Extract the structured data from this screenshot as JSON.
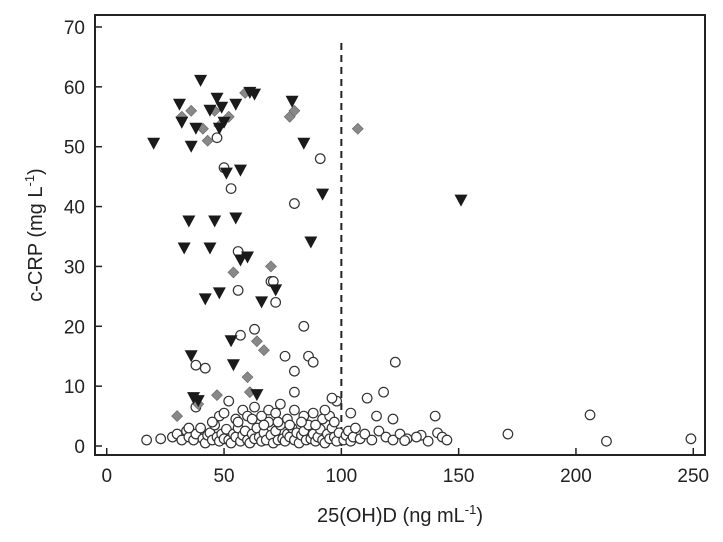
{
  "chart_data": {
    "type": "scatter",
    "xlabel": "25(OH)D (ng mL",
    "xlabel_sup": "-1",
    "xlabel_end": ")",
    "ylabel": "c-CRP (mg L",
    "ylabel_sup": "-1",
    "ylabel_end": ")",
    "xlim": [
      -5,
      255
    ],
    "ylim": [
      -1.5,
      72
    ],
    "xticks": [
      0,
      50,
      100,
      150,
      200,
      250
    ],
    "yticks": [
      0,
      10,
      20,
      30,
      40,
      50,
      60,
      70
    ],
    "reference_line": {
      "x": 100,
      "y_range": [
        0,
        68
      ],
      "style": "dashed"
    },
    "grid": false,
    "series": [
      {
        "marker": "triangle-down",
        "color": "#1a1a1a",
        "points": [
          [
            20,
            50.5
          ],
          [
            31,
            57
          ],
          [
            32,
            54
          ],
          [
            35,
            37.5
          ],
          [
            40,
            61
          ],
          [
            44,
            56
          ],
          [
            47,
            58
          ],
          [
            49,
            56.5
          ],
          [
            50,
            54
          ],
          [
            55,
            57
          ],
          [
            61,
            59
          ],
          [
            63,
            58.7
          ],
          [
            79,
            57.5
          ],
          [
            33,
            33
          ],
          [
            36,
            50
          ],
          [
            38,
            53
          ],
          [
            42,
            24.5
          ],
          [
            44,
            33
          ],
          [
            46,
            37.5
          ],
          [
            48,
            53
          ],
          [
            48,
            25.5
          ],
          [
            51,
            45.5
          ],
          [
            53,
            17.5
          ],
          [
            54,
            13.5
          ],
          [
            55,
            38
          ],
          [
            57,
            46
          ],
          [
            57,
            31
          ],
          [
            60,
            31.5
          ],
          [
            64,
            8.5
          ],
          [
            66,
            24
          ],
          [
            72,
            26
          ],
          [
            84,
            50.5
          ],
          [
            87,
            34
          ],
          [
            92,
            42
          ],
          [
            36,
            15
          ],
          [
            37,
            8
          ],
          [
            39,
            7.5
          ],
          [
            151,
            41
          ]
        ]
      },
      {
        "marker": "diamond",
        "color": "#888888",
        "points": [
          [
            30,
            5
          ],
          [
            32,
            55
          ],
          [
            36,
            56
          ],
          [
            41,
            53
          ],
          [
            43,
            51
          ],
          [
            46,
            56
          ],
          [
            48,
            53.5
          ],
          [
            52,
            55
          ],
          [
            59,
            59
          ],
          [
            78,
            55
          ],
          [
            80,
            56
          ],
          [
            107,
            53
          ],
          [
            39,
            7
          ],
          [
            47,
            8.5
          ],
          [
            54,
            29
          ],
          [
            64,
            17.5
          ],
          [
            67,
            16
          ],
          [
            70,
            30
          ],
          [
            60,
            11.5
          ],
          [
            61,
            9
          ]
        ]
      },
      {
        "marker": "circle",
        "color": "#ffffff",
        "stroke": "#333333",
        "points": [
          [
            17,
            1
          ],
          [
            23,
            1.2
          ],
          [
            28,
            1.5
          ],
          [
            30,
            2
          ],
          [
            32,
            1
          ],
          [
            34,
            2.5
          ],
          [
            35,
            1.5
          ],
          [
            37,
            1
          ],
          [
            38,
            2
          ],
          [
            40,
            3
          ],
          [
            41,
            1.2
          ],
          [
            42,
            0.5
          ],
          [
            43,
            1.8
          ],
          [
            44,
            2.2
          ],
          [
            45,
            1
          ],
          [
            46,
            3.5
          ],
          [
            47,
            1.5
          ],
          [
            48,
            0.8
          ],
          [
            49,
            2
          ],
          [
            50,
            1.2
          ],
          [
            51,
            2.8
          ],
          [
            52,
            1
          ],
          [
            53,
            0.5
          ],
          [
            54,
            2
          ],
          [
            55,
            1.5
          ],
          [
            56,
            3
          ],
          [
            57,
            0.8
          ],
          [
            58,
            1.8
          ],
          [
            59,
            2.5
          ],
          [
            60,
            1
          ],
          [
            61,
            0.5
          ],
          [
            62,
            2
          ],
          [
            63,
            1.2
          ],
          [
            64,
            3
          ],
          [
            65,
            1.5
          ],
          [
            66,
            0.8
          ],
          [
            67,
            2.2
          ],
          [
            68,
            1
          ],
          [
            69,
            4
          ],
          [
            70,
            1.8
          ],
          [
            71,
            0.5
          ],
          [
            72,
            2.5
          ],
          [
            73,
            1
          ],
          [
            74,
            3.5
          ],
          [
            75,
            1.2
          ],
          [
            76,
            0.8
          ],
          [
            77,
            2
          ],
          [
            78,
            1.5
          ],
          [
            79,
            3
          ],
          [
            80,
            1
          ],
          [
            81,
            2.2
          ],
          [
            82,
            0.5
          ],
          [
            83,
            1.8
          ],
          [
            84,
            2.5
          ],
          [
            85,
            1
          ],
          [
            86,
            3.5
          ],
          [
            87,
            1.2
          ],
          [
            88,
            2
          ],
          [
            89,
            0.8
          ],
          [
            90,
            1.5
          ],
          [
            91,
            2.8
          ],
          [
            92,
            1
          ],
          [
            93,
            0.5
          ],
          [
            94,
            2
          ],
          [
            95,
            1.2
          ],
          [
            96,
            3
          ],
          [
            97,
            1.5
          ],
          [
            98,
            0.8
          ],
          [
            99,
            2.2
          ],
          [
            101,
            1
          ],
          [
            102,
            1.8
          ],
          [
            103,
            2.5
          ],
          [
            104,
            0.8
          ],
          [
            105,
            1.5
          ],
          [
            106,
            3
          ],
          [
            108,
            1.2
          ],
          [
            110,
            2
          ],
          [
            113,
            1
          ],
          [
            116,
            2.5
          ],
          [
            119,
            1.5
          ],
          [
            122,
            1
          ],
          [
            125,
            2
          ],
          [
            128,
            1.2
          ],
          [
            134,
            1.8
          ],
          [
            137,
            0.8
          ],
          [
            141,
            2.2
          ],
          [
            143,
            1.5
          ],
          [
            48,
            5
          ],
          [
            52,
            7.5
          ],
          [
            55,
            4.5
          ],
          [
            58,
            6
          ],
          [
            60,
            5
          ],
          [
            63,
            6.5
          ],
          [
            66,
            5
          ],
          [
            69,
            6
          ],
          [
            72,
            5.5
          ],
          [
            74,
            7
          ],
          [
            77,
            4.5
          ],
          [
            80,
            6
          ],
          [
            84,
            5
          ],
          [
            88,
            5.5
          ],
          [
            92,
            4.5
          ],
          [
            95,
            5
          ],
          [
            98,
            7.5
          ],
          [
            104,
            5.5
          ],
          [
            111,
            8
          ],
          [
            115,
            5
          ],
          [
            118,
            9
          ],
          [
            122,
            4.5
          ],
          [
            140,
            5
          ],
          [
            38,
            6.5
          ],
          [
            35,
            3
          ],
          [
            45,
            4
          ],
          [
            50,
            5.5
          ],
          [
            56,
            4
          ],
          [
            62,
            4.5
          ],
          [
            67,
            3.5
          ],
          [
            73,
            4
          ],
          [
            78,
            3.5
          ],
          [
            83,
            4
          ],
          [
            89,
            3.5
          ],
          [
            93,
            6
          ],
          [
            97,
            4
          ],
          [
            206,
            5.2
          ],
          [
            171,
            2
          ],
          [
            213,
            0.8
          ],
          [
            249,
            1.2
          ],
          [
            145,
            1
          ],
          [
            132,
            1.5
          ],
          [
            127,
            0.9
          ],
          [
            42,
            13
          ],
          [
            38,
            13.5
          ],
          [
            57,
            18.5
          ],
          [
            63,
            19.5
          ],
          [
            70,
            27.5
          ],
          [
            72,
            24
          ],
          [
            76,
            15
          ],
          [
            80,
            12.5
          ],
          [
            84,
            20
          ],
          [
            86,
            15
          ],
          [
            88,
            14
          ],
          [
            80,
            9
          ],
          [
            123,
            14
          ],
          [
            56,
            32.5
          ],
          [
            71,
            27.5
          ],
          [
            53,
            43
          ],
          [
            80,
            40.5
          ],
          [
            91,
            48
          ],
          [
            50,
            46.5
          ],
          [
            47,
            51.5
          ],
          [
            96,
            8
          ],
          [
            56,
            26
          ]
        ]
      }
    ]
  }
}
